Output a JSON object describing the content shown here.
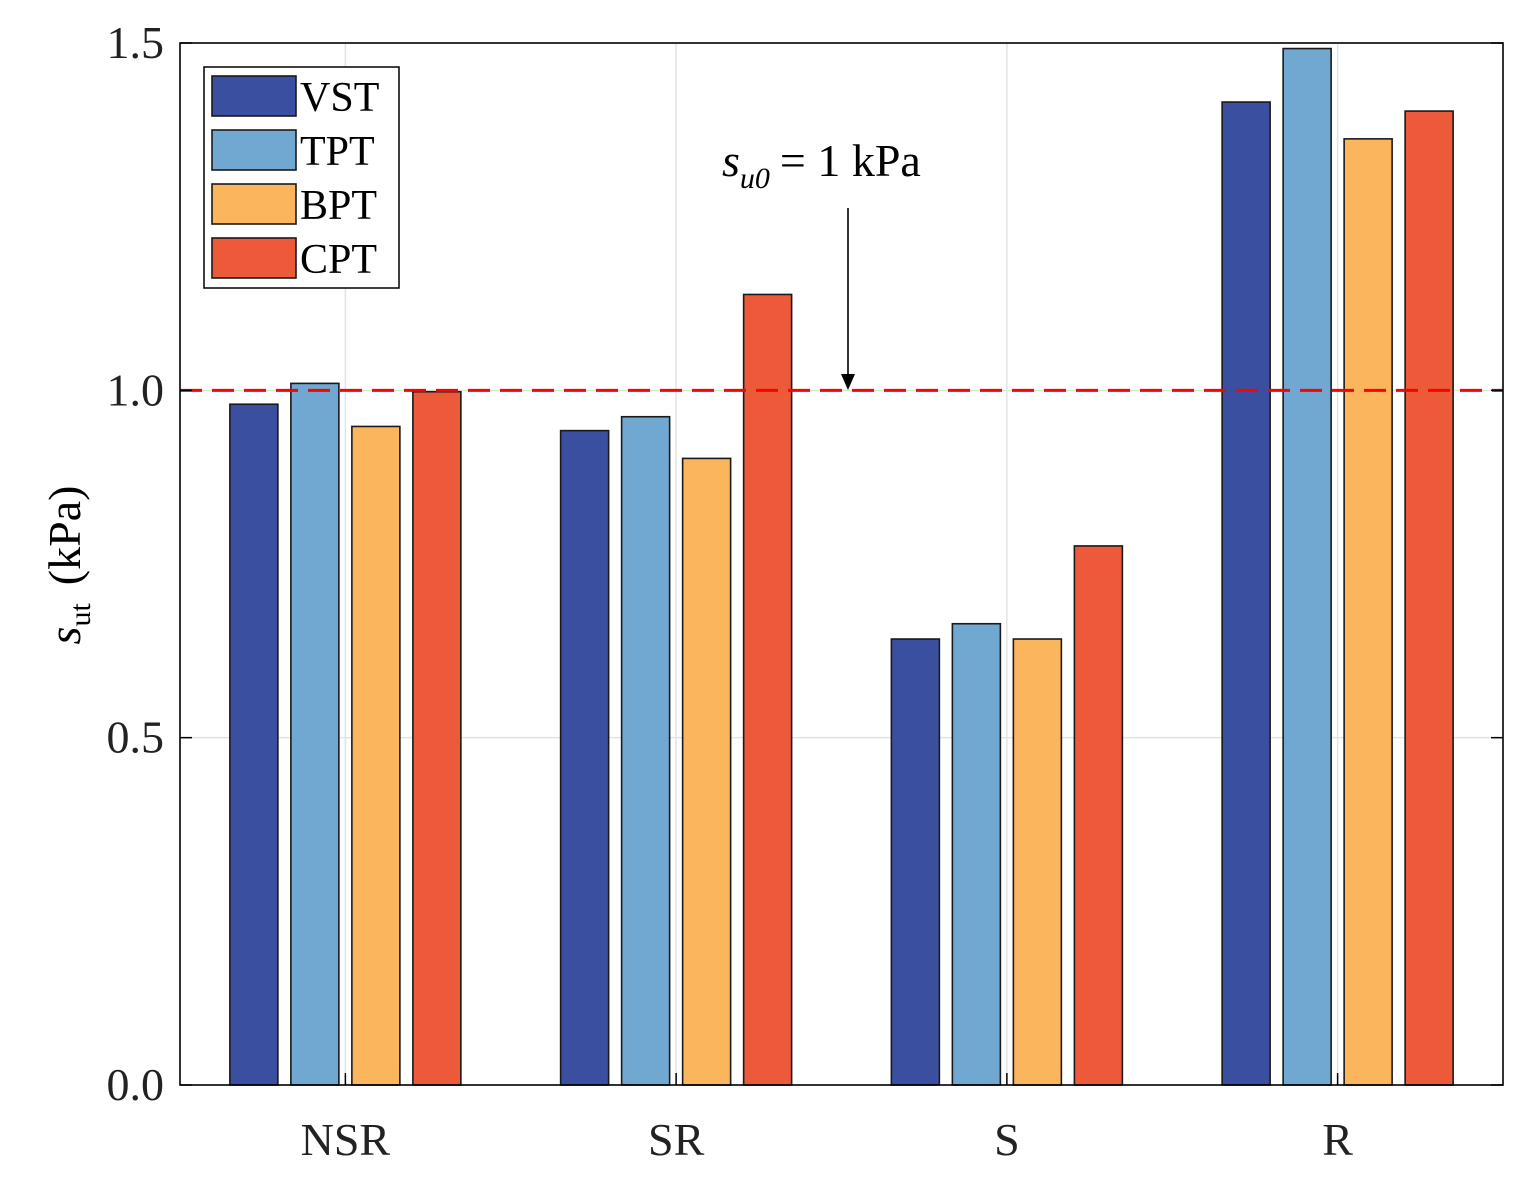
{
  "chart_data": {
    "type": "bar",
    "title": "",
    "categories": [
      "NSR",
      "SR",
      "S",
      "R"
    ],
    "series": [
      {
        "name": "VST",
        "color": "#3a4fa0",
        "values": [
          0.98,
          0.942,
          0.642,
          1.415
        ]
      },
      {
        "name": "TPT",
        "color": "#71a8d1",
        "values": [
          1.01,
          0.962,
          0.664,
          1.492
        ]
      },
      {
        "name": "BPT",
        "color": "#fbb55c",
        "values": [
          0.948,
          0.902,
          0.642,
          1.362
        ]
      },
      {
        "name": "CPT",
        "color": "#ec5a39",
        "values": [
          0.998,
          1.138,
          0.776,
          1.402
        ]
      }
    ],
    "ylabel": {
      "symbol": "s",
      "subscript": "ut",
      "unit": "(kPa)"
    },
    "xlabel": "",
    "ylim": [
      0,
      1.5
    ],
    "yticks": [
      "0.0",
      "0.5",
      "1.0",
      "1.5"
    ],
    "grid": true,
    "legend_position": "top-left",
    "reference_line": {
      "value": 1.0,
      "color": "#ff0000",
      "style": "dashed"
    },
    "annotation": {
      "symbol": "s",
      "subscript": "u0",
      "text": "= 1 kPa"
    }
  }
}
